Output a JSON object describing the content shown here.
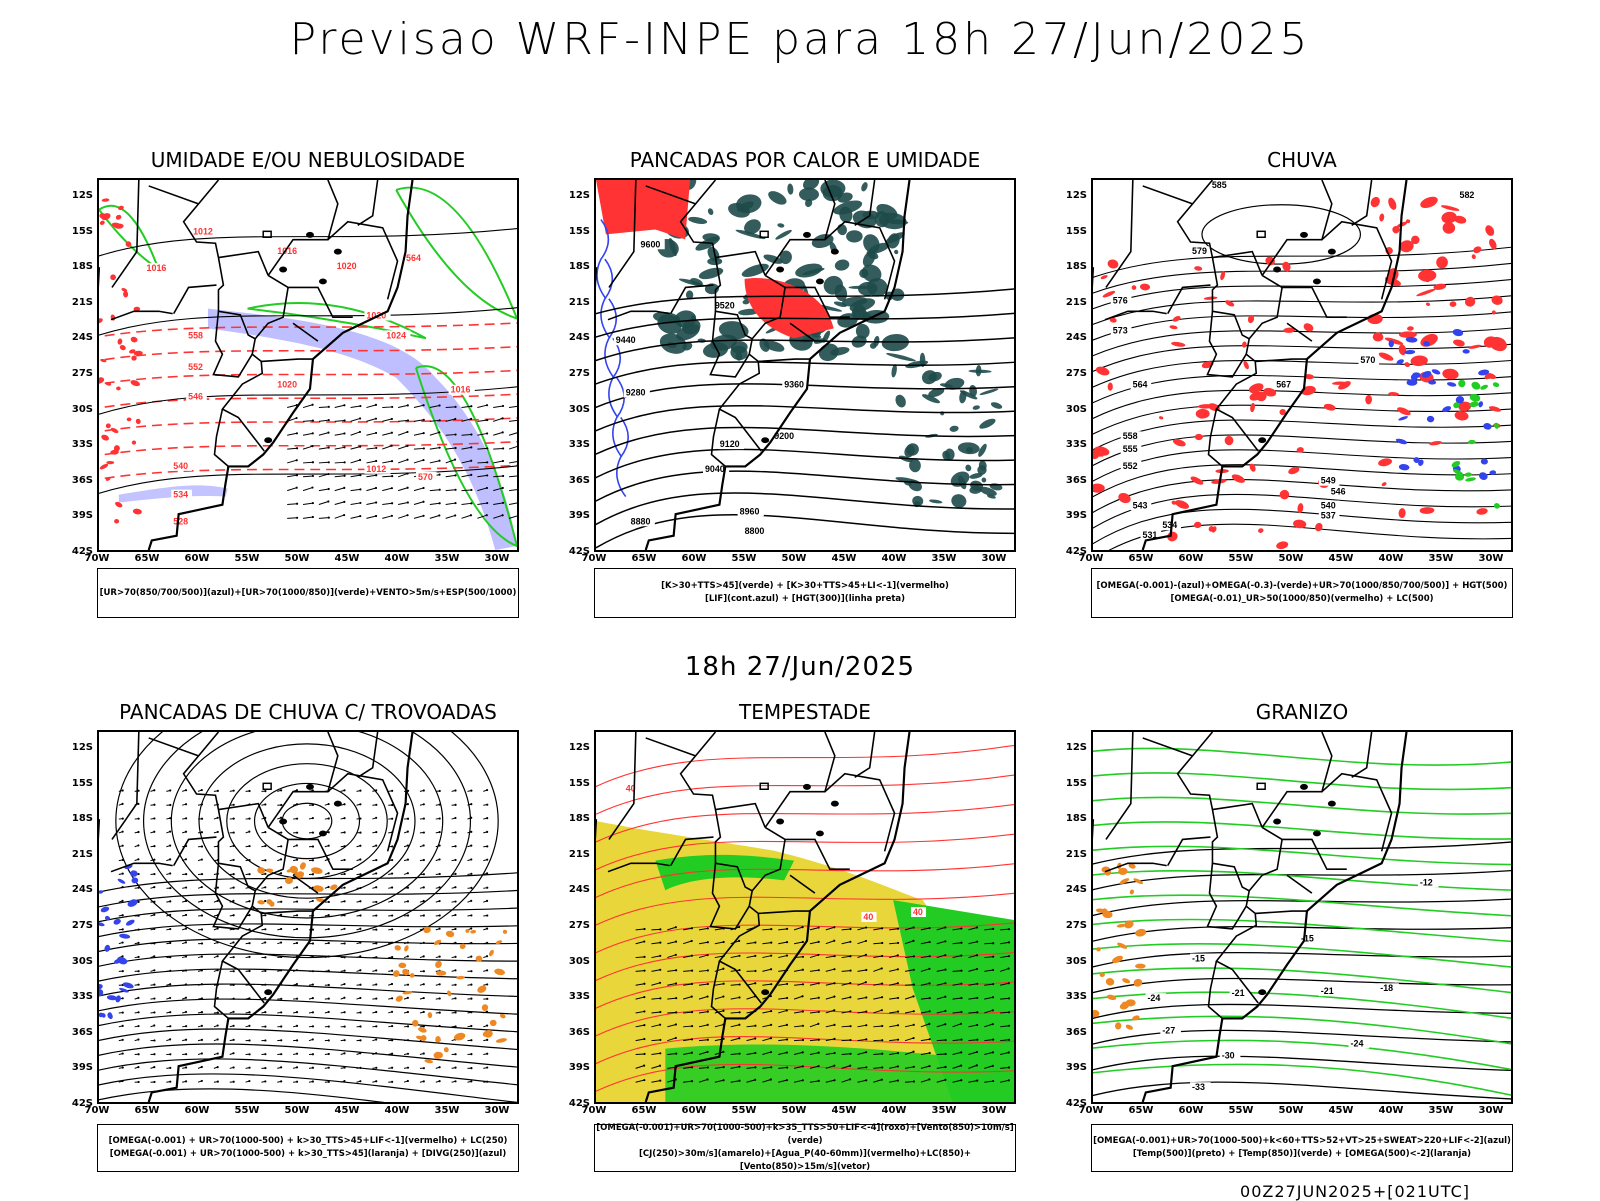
{
  "header": {
    "title": "Previsao WRF-INPE  para 18h 27/Jun/2025",
    "subtitle": "18h 27/Jun/2025"
  },
  "axes": {
    "lat_labels": [
      "12S",
      "15S",
      "18S",
      "21S",
      "24S",
      "27S",
      "30S",
      "33S",
      "36S",
      "39S",
      "42S"
    ],
    "lon_labels": [
      "70W",
      "65W",
      "60W",
      "55W",
      "50W",
      "45W",
      "40W",
      "35W",
      "30W"
    ]
  },
  "colors": {
    "blue": "#3344ee",
    "green": "#22cc22",
    "red": "#ff3333",
    "orange": "#ee8822",
    "yellow": "#e8d63a",
    "darkteal": "#1e4a4a",
    "lavender": "#aaaaff"
  },
  "panels": [
    {
      "id": "umidade",
      "title": "UMIDADE E/OU NEBULOSIDADE",
      "legend": [
        "[UR>70(850/700/500)](azul)+[UR>70(1000/850)](verde)+VENTO>5m/s+ESP(500/1000)"
      ],
      "contour_labels": [
        "1012",
        "1016",
        "1020",
        "1020",
        "1024",
        "1016",
        "1016",
        "1020",
        "1012",
        "570",
        "564",
        "558",
        "552",
        "546",
        "540",
        "534",
        "528"
      ]
    },
    {
      "id": "pancadas_calor",
      "title": "PANCADAS POR CALOR E UMIDADE",
      "legend": [
        "[K>30+TTS>45](verde) + [K>30+TTS>45+LI<-1](vermelho)",
        "[LIF](cont.azul) + [HGT(300)](linha preta)"
      ],
      "contour_labels": [
        "9600",
        "9520",
        "9440",
        "9360",
        "9280",
        "9200",
        "9120",
        "9040",
        "8960",
        "8880",
        "8800"
      ]
    },
    {
      "id": "chuva",
      "title": "CHUVA",
      "legend": [
        "[OMEGA(-0.001)-(azul)+OMEGA(-0.3)-(verde)+UR>70(1000/850/700/500)] + HGT(500)",
        "[OMEGA(-0.01)_UR>50(1000/850)(vermelho) + LC(500)"
      ],
      "contour_labels": [
        "585",
        "582",
        "579",
        "576",
        "573",
        "570",
        "567",
        "564",
        "561",
        "558",
        "555",
        "552",
        "549",
        "546",
        "543",
        "540",
        "537",
        "534",
        "531"
      ]
    },
    {
      "id": "trovoadas",
      "title": "PANCADAS DE CHUVA C/ TROVOADAS",
      "legend": [
        "[OMEGA(-0.001) + UR>70(1000-500) + k>30_TTS>45+LIF<-1](vermelho) + LC(250)",
        "[OMEGA(-0.001) + UR>70(1000-500) + k>30_TTS>45](laranja) + [DIVG(250)](azul)"
      ],
      "contour_labels": []
    },
    {
      "id": "tempestade",
      "title": "TEMPESTADE",
      "legend": [
        "[OMEGA(-0.001)+UR>70(1000-500)+k>35_TTS>50+LIF<-4](roxo)+[Vento(850)>10m/s](verde)",
        "[CJ(250)>30m/s](amarelo)+[Agua_P(40-60mm)](vermelho)+LC(850)+[Vento(850)>15m/s](vetor)"
      ],
      "contour_labels": [
        "40",
        "40",
        "40"
      ]
    },
    {
      "id": "granizo",
      "title": "GRANIZO",
      "legend": [
        "[OMEGA(-0.001)+UR>70(1000-500)+k<60+TTS>52+VT>25+SWEAT>220+LIF<-2](azul)",
        "[Temp(500)](preto) + [Temp(850)](verde) + [OMEGA(500)<-2](laranja)"
      ],
      "contour_labels": [
        "-12",
        "-15",
        "-15",
        "-18",
        "-21",
        "-21",
        "-24",
        "-24",
        "-27",
        "-30",
        "-33"
      ]
    }
  ],
  "footer": "00Z27JUN2025+[021UTC]"
}
